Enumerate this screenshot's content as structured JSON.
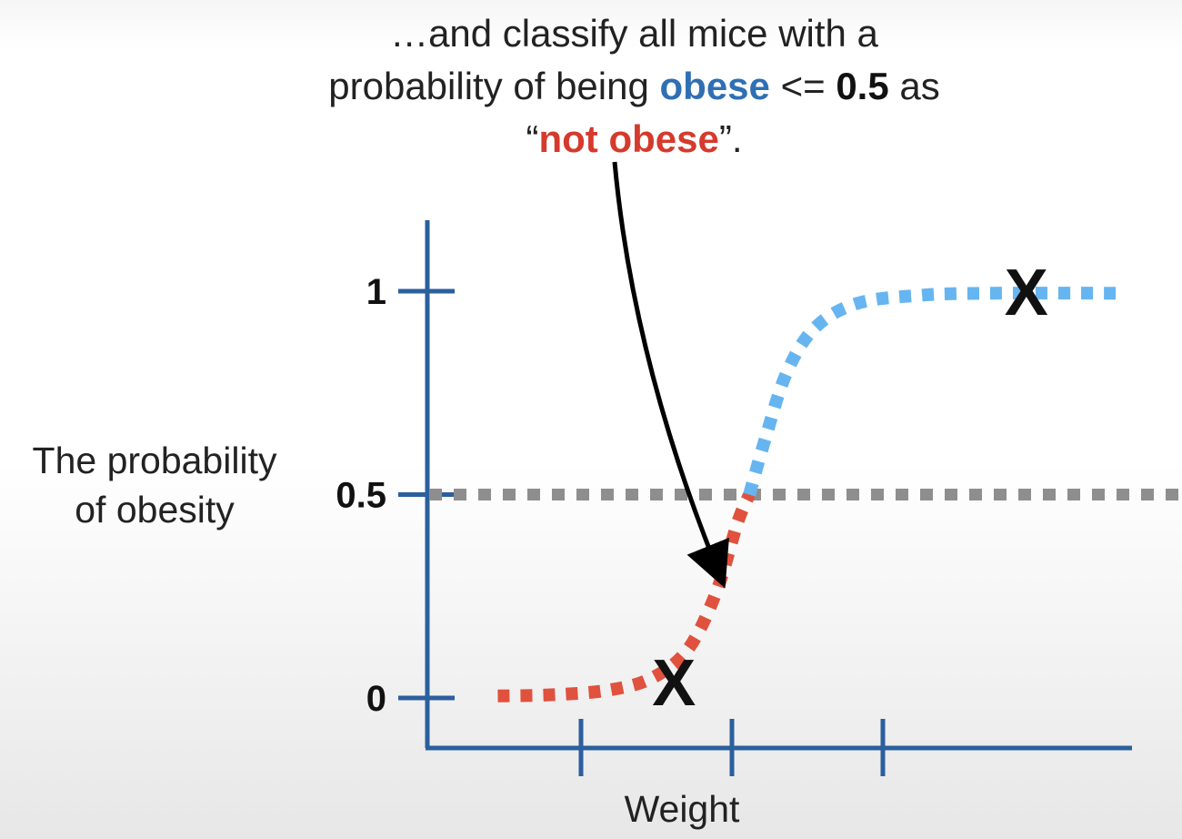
{
  "caption": {
    "line1": "…and classify all mice with a",
    "line2_pre": "probability of being ",
    "line2_obese": "obese",
    "line2_le": " <= ",
    "line2_threshold": "0.5",
    "line2_post": " as",
    "line3_open": "“",
    "line3_label": "not obese",
    "line3_close": "”."
  },
  "chart_data": {
    "type": "line",
    "title": "",
    "xlabel": "Weight",
    "ylabel": "The probability of obesity",
    "ylabel_lines": [
      "The probability",
      "of obesity"
    ],
    "y_ticks": [
      {
        "value": 1,
        "label": "1"
      },
      {
        "value": 0.5,
        "label": "0.5"
      },
      {
        "value": 0,
        "label": "0"
      }
    ],
    "x_tick_count": 3,
    "ylim": [
      0,
      1
    ],
    "threshold": 0.5,
    "curve": [
      {
        "x": 0.1,
        "y": 0.005
      },
      {
        "x": 0.18,
        "y": 0.008
      },
      {
        "x": 0.26,
        "y": 0.02
      },
      {
        "x": 0.32,
        "y": 0.05
      },
      {
        "x": 0.37,
        "y": 0.12
      },
      {
        "x": 0.41,
        "y": 0.26
      },
      {
        "x": 0.44,
        "y": 0.43
      },
      {
        "x": 0.457,
        "y": 0.5
      },
      {
        "x": 0.48,
        "y": 0.64
      },
      {
        "x": 0.51,
        "y": 0.8
      },
      {
        "x": 0.55,
        "y": 0.91
      },
      {
        "x": 0.61,
        "y": 0.97
      },
      {
        "x": 0.7,
        "y": 0.99
      },
      {
        "x": 0.8,
        "y": 0.995
      },
      {
        "x": 0.99,
        "y": 0.995
      }
    ],
    "points": [
      {
        "x": 0.35,
        "y": 0.04,
        "label": "X"
      },
      {
        "x": 0.85,
        "y": 1.0,
        "label": "X"
      }
    ],
    "colors": {
      "axis": "#2b5f9e",
      "below": "#e0513e",
      "above": "#66b5f0",
      "threshold": "#8e8e8e",
      "arrow": "#000000"
    }
  }
}
